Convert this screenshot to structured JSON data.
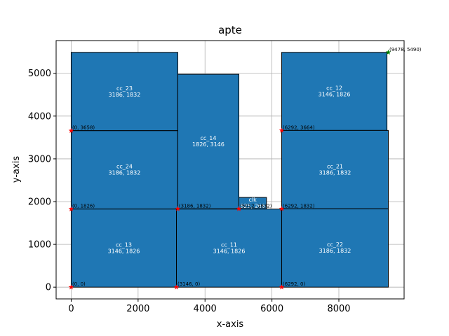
{
  "chart_data": {
    "type": "rectangles",
    "title": "apte",
    "xlabel": "x-axis",
    "ylabel": "y-axis",
    "xlim": [
      -450,
      9950
    ],
    "ylim": [
      -275,
      5765
    ],
    "xticks": [
      0,
      2000,
      4000,
      6000,
      8000
    ],
    "xtick_labels": [
      "0",
      "2000",
      "4000",
      "6000",
      "8000"
    ],
    "yticks": [
      0,
      1000,
      2000,
      3000,
      4000,
      5000
    ],
    "ytick_labels": [
      "0",
      "1000",
      "2000",
      "3000",
      "4000",
      "5000"
    ],
    "grid": true,
    "colors": {
      "block_fill": "#1f77b4",
      "block_edge": "#000000",
      "point": "#ff0000",
      "corner_point": "#008000",
      "grid": "#b0b0b0"
    },
    "blocks": [
      {
        "name": "cc_23",
        "x": 0,
        "y": 3658,
        "w": 3186,
        "h": 1832,
        "size_label": "3186, 1832"
      },
      {
        "name": "cc_24",
        "x": 0,
        "y": 1826,
        "w": 3186,
        "h": 1832,
        "size_label": "3186, 1832"
      },
      {
        "name": "cc_13",
        "x": 0,
        "y": 0,
        "w": 3146,
        "h": 1826,
        "size_label": "3146, 1826"
      },
      {
        "name": "cc_14",
        "x": 3186,
        "y": 1832,
        "w": 1826,
        "h": 3146,
        "size_label": "1826, 3146"
      },
      {
        "name": "cc_11",
        "x": 3146,
        "y": 0,
        "w": 3146,
        "h": 1826,
        "size_label": "3146, 1826"
      },
      {
        "name": "clk",
        "x": 5012,
        "y": 1832,
        "w": 825,
        "h": 266,
        "size_label": "825, 266"
      },
      {
        "name": "cc_12",
        "x": 6292,
        "y": 3664,
        "w": 3146,
        "h": 1826,
        "size_label": "3146, 1826"
      },
      {
        "name": "cc_21",
        "x": 6292,
        "y": 1832,
        "w": 3186,
        "h": 1832,
        "size_label": "3186, 1832"
      },
      {
        "name": "cc_22",
        "x": 6292,
        "y": 0,
        "w": 3186,
        "h": 1832,
        "size_label": "3186, 1832"
      }
    ],
    "points": [
      {
        "x": 0,
        "y": 0,
        "label": "(0, 0)"
      },
      {
        "x": 3146,
        "y": 0,
        "label": "(3146, 0)"
      },
      {
        "x": 6292,
        "y": 0,
        "label": "(6292, 0)"
      },
      {
        "x": 0,
        "y": 1826,
        "label": "(0, 1826)"
      },
      {
        "x": 3186,
        "y": 1832,
        "label": "(3186, 1832)"
      },
      {
        "x": 5012,
        "y": 1832,
        "label": "(5012, 1832)"
      },
      {
        "x": 6292,
        "y": 1832,
        "label": "(6292, 1832)"
      },
      {
        "x": 0,
        "y": 3658,
        "label": "(0, 3658)"
      },
      {
        "x": 6292,
        "y": 3664,
        "label": "(6292, 3664)"
      }
    ],
    "corner_point": {
      "x": 9478,
      "y": 5490,
      "label": "(9478, 5490)"
    }
  }
}
